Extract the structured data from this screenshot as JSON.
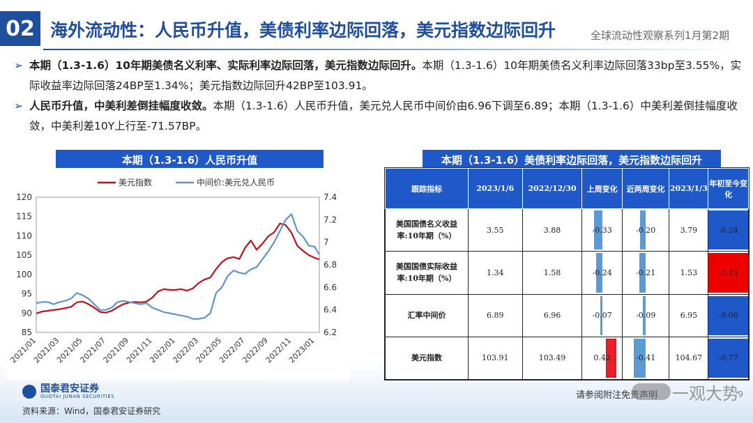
{
  "header": {
    "section_num": "02",
    "title": "海外流动性：人民币升值，美债利率边际回落，美元指数边际回升",
    "series_name": "全球流动性观察系列1月第2期"
  },
  "bullets": [
    {
      "mark": "➢",
      "bold": "本期（1.3-1.6）10年期美债名义利率、实际利率边际回落，美元指数边际回升。",
      "text": "本期（1.3-1.6）10年期美债名义利率边际回落33bp至3.55%，实际收益率边际回落24BP至1.34%；美元指数边际回升42BP至103.91。"
    },
    {
      "mark": "➢",
      "bold": "人民币升值，中美利差倒挂幅度收敛。",
      "text": "本期（1.3-1.6）人民币升值，美元兑人民币中间价由6.96下调至6.89；本期（1.3-1.6）中美利差倒挂幅度收敛，中美利差10Y上行至-71.57BP。"
    }
  ],
  "left_panel": {
    "title": "本期（1.3-1.6）人民币升值"
  },
  "right_panel": {
    "title": "本期（1.3-1.6）美债利率边际回落，美元指数边际回升"
  },
  "chart_data": {
    "type": "line",
    "legend_position": "top",
    "x_tick_labels": [
      "2021/01",
      "2021/03",
      "2021/05",
      "2021/07",
      "2021/09",
      "2021/11",
      "2022/01",
      "2022/03",
      "2022/05",
      "2022/07",
      "2022/09",
      "2022/11",
      "2023/01"
    ],
    "y_left": {
      "ylim": [
        85,
        120
      ],
      "ticks": [
        85,
        90,
        95,
        100,
        105,
        110,
        115,
        120
      ]
    },
    "y_right": {
      "ylim": [
        6.2,
        7.4
      ],
      "ticks": [
        6.2,
        6.4,
        6.6,
        6.8,
        7.0,
        7.2,
        7.4
      ],
      "tick_labels": [
        "6.2",
        "6.4",
        "6.6",
        "6.8",
        "7",
        "7.2",
        "7.4"
      ]
    },
    "series": [
      {
        "name": "美元指数",
        "axis": "left",
        "color": "#c0101a",
        "x": [
          0,
          0.25,
          0.5,
          0.75,
          1,
          1.25,
          1.5,
          1.75,
          2,
          2.25,
          2.5,
          2.75,
          3,
          3.25,
          3.5,
          3.75,
          4,
          4.25,
          4.5,
          4.75,
          5,
          5.25,
          5.5,
          5.75,
          6,
          6.25,
          6.5,
          6.75,
          7,
          7.25,
          7.5,
          7.75,
          8,
          8.25,
          8.5,
          8.75,
          9,
          9.25,
          9.5,
          9.75,
          10,
          10.25,
          10.5,
          10.75,
          11,
          11.25,
          11.5,
          11.75,
          12,
          12.2
        ],
        "y": [
          89.9,
          90.4,
          90.6,
          90.8,
          91.0,
          91.3,
          91.6,
          92.8,
          93.0,
          92.3,
          91.4,
          90.3,
          90.1,
          90.6,
          91.5,
          92.3,
          92.7,
          92.9,
          92.8,
          93.0,
          94.0,
          95.6,
          96.2,
          96.0,
          96.0,
          96.2,
          95.8,
          96.4,
          97.8,
          98.7,
          99.2,
          101.4,
          103.2,
          104.2,
          104.5,
          104.0,
          106.9,
          108.8,
          106.4,
          108.0,
          109.9,
          110.9,
          113.2,
          112.8,
          110.8,
          107.4,
          106.1,
          105.0,
          104.3,
          103.9
        ]
      },
      {
        "name": "中间价:美元兑人民币",
        "axis": "right",
        "color": "#5f93cc",
        "x": [
          0,
          0.25,
          0.5,
          0.75,
          1,
          1.25,
          1.5,
          1.75,
          2,
          2.25,
          2.5,
          2.75,
          3,
          3.25,
          3.5,
          3.75,
          4,
          4.25,
          4.5,
          4.75,
          5,
          5.25,
          5.5,
          5.75,
          6,
          6.25,
          6.5,
          6.75,
          7,
          7.25,
          7.5,
          7.75,
          8,
          8.25,
          8.5,
          8.75,
          9,
          9.25,
          9.5,
          9.75,
          10,
          10.25,
          10.5,
          10.75,
          11,
          11.25,
          11.5,
          11.75,
          12,
          12.2
        ],
        "y": [
          6.46,
          6.47,
          6.47,
          6.45,
          6.47,
          6.48,
          6.5,
          6.55,
          6.53,
          6.5,
          6.45,
          6.4,
          6.4,
          6.42,
          6.47,
          6.48,
          6.47,
          6.46,
          6.45,
          6.46,
          6.42,
          6.4,
          6.38,
          6.37,
          6.36,
          6.35,
          6.34,
          6.32,
          6.32,
          6.33,
          6.37,
          6.55,
          6.6,
          6.7,
          6.75,
          6.73,
          6.72,
          6.76,
          6.78,
          6.85,
          6.92,
          7.0,
          7.1,
          7.2,
          7.25,
          7.1,
          7.05,
          6.97,
          6.96,
          6.89
        ]
      }
    ]
  },
  "table": {
    "headers": [
      "跟踪指标",
      "2023/1/6",
      "2022/12/30",
      "上周变化",
      "近两周变化",
      "2023/1/3",
      "年初至今变化"
    ],
    "rows": [
      {
        "name": "美国国债名义收益率:10年期（%）",
        "c1": "3.55",
        "c2": "3.88",
        "w1": "-0.33",
        "w2": "-0.20",
        "c3": "3.79",
        "ytd": "-0.24",
        "w1_num": -0.33,
        "w2_num": -0.2,
        "ytd_num": -0.24,
        "ytd_color": "#1f58c8"
      },
      {
        "name": "美国国债实际收益率:10年期（%）",
        "c1": "1.34",
        "c2": "1.58",
        "w1": "-0.24",
        "w2": "-0.21",
        "c3": "1.53",
        "ytd": "-0.19",
        "w1_num": -0.24,
        "w2_num": -0.21,
        "ytd_num": -0.19,
        "ytd_color": "#ee0000"
      },
      {
        "name": "汇率中间价",
        "c1": "6.89",
        "c2": "6.96",
        "w1": "-0.07",
        "w2": "-0.09",
        "c3": "6.95",
        "ytd": "-0.06",
        "w1_num": -0.07,
        "w2_num": -0.09,
        "ytd_num": -0.06,
        "ytd_color": "#1f58c8"
      },
      {
        "name": "美元指数",
        "c1": "103.91",
        "c2": "103.49",
        "w1": "0.42",
        "w2": "-0.41",
        "c3": "104.67",
        "ytd": "-0.77",
        "w1_num": 0.42,
        "w2_num": -0.41,
        "ytd_num": -0.77,
        "ytd_color": "#1f58c8"
      }
    ]
  },
  "footer": {
    "logo_text": "国泰君安证券",
    "logo_sub": "GUOTAI JUNAN SECURITIES",
    "source": "资料来源：Wind，国泰君安证券研究",
    "disclaimer": "请参阅附注免责声明",
    "watermark": "一观大势",
    "page_num": "9"
  }
}
